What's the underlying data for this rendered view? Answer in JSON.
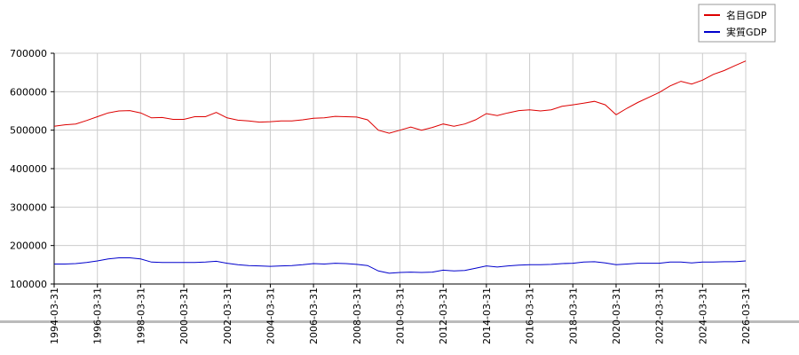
{
  "chart_data": {
    "type": "line",
    "x": [
      "1994-03-31",
      "1994-09-30",
      "1995-03-31",
      "1995-09-30",
      "1996-03-31",
      "1996-09-30",
      "1997-03-31",
      "1997-09-30",
      "1998-03-31",
      "1998-09-30",
      "1999-03-31",
      "1999-09-30",
      "2000-03-31",
      "2000-09-30",
      "2001-03-31",
      "2001-09-30",
      "2002-03-31",
      "2002-09-30",
      "2003-03-31",
      "2003-09-30",
      "2004-03-31",
      "2004-09-30",
      "2005-03-31",
      "2005-09-30",
      "2006-03-31",
      "2006-09-30",
      "2007-03-31",
      "2007-09-30",
      "2008-03-31",
      "2008-09-30",
      "2009-03-31",
      "2009-09-30",
      "2010-03-31",
      "2010-09-30",
      "2011-03-31",
      "2011-09-30",
      "2012-03-31",
      "2012-09-30",
      "2013-03-31",
      "2013-09-30",
      "2014-03-31",
      "2014-09-30",
      "2015-03-31",
      "2015-09-30",
      "2016-03-31",
      "2016-09-30",
      "2017-03-31",
      "2017-09-30",
      "2018-03-31",
      "2018-09-30",
      "2019-03-31",
      "2019-09-30",
      "2020-03-31",
      "2020-09-30",
      "2021-03-31",
      "2021-09-30",
      "2022-03-31",
      "2022-09-30",
      "2023-03-31",
      "2023-09-30",
      "2024-03-31",
      "2024-09-30",
      "2025-03-31",
      "2025-09-30",
      "2026-03-31"
    ],
    "series": [
      {
        "name": "名目GDP",
        "color": "#dd0000",
        "values": [
          510000,
          514000,
          516000,
          525000,
          535000,
          545000,
          550000,
          551000,
          545000,
          532000,
          533000,
          528000,
          528000,
          535000,
          535000,
          546000,
          532000,
          526000,
          524000,
          521000,
          522000,
          524000,
          524000,
          527000,
          531000,
          532000,
          536000,
          535000,
          534000,
          527000,
          500000,
          492000,
          500000,
          508000,
          500000,
          507000,
          516000,
          510000,
          516000,
          527000,
          543000,
          538000,
          545000,
          551000,
          553000,
          550000,
          553000,
          562000,
          566000,
          570000,
          575000,
          566000,
          540000,
          557000,
          572000,
          585000,
          598000,
          615000,
          627000,
          620000,
          630000,
          645000,
          655000,
          668000,
          680000
        ]
      },
      {
        "name": "実質GDP",
        "color": "#0000cc",
        "values": [
          152000,
          152000,
          153000,
          156000,
          160000,
          165000,
          168000,
          168000,
          165000,
          157000,
          156000,
          156000,
          156000,
          156000,
          157000,
          159000,
          154000,
          150000,
          148000,
          147000,
          146000,
          147000,
          148000,
          150000,
          153000,
          152000,
          154000,
          153000,
          151000,
          148000,
          134000,
          128000,
          130000,
          131000,
          130000,
          131000,
          136000,
          134000,
          135000,
          141000,
          147000,
          144000,
          147000,
          149000,
          150000,
          150000,
          151000,
          153000,
          154000,
          157000,
          158000,
          155000,
          150000,
          152000,
          154000,
          154000,
          154000,
          157000,
          157000,
          155000,
          157000,
          157000,
          158000,
          158000,
          160000
        ]
      }
    ],
    "xlim": [
      "1994-03-31",
      "2026-03-31"
    ],
    "xticks": [
      "1994-03-31",
      "1996-03-31",
      "1998-03-31",
      "2000-03-31",
      "2002-03-31",
      "2004-03-31",
      "2006-03-31",
      "2008-03-31",
      "2010-03-31",
      "2012-03-31",
      "2014-03-31",
      "2016-03-31",
      "2018-03-31",
      "2020-03-31",
      "2022-03-31",
      "2024-03-31",
      "2026-03-31"
    ],
    "ylim": [
      100000,
      700000
    ],
    "yticks": [
      100000,
      200000,
      300000,
      400000,
      500000,
      600000,
      700000
    ],
    "grid": true,
    "legend": "top-right"
  }
}
